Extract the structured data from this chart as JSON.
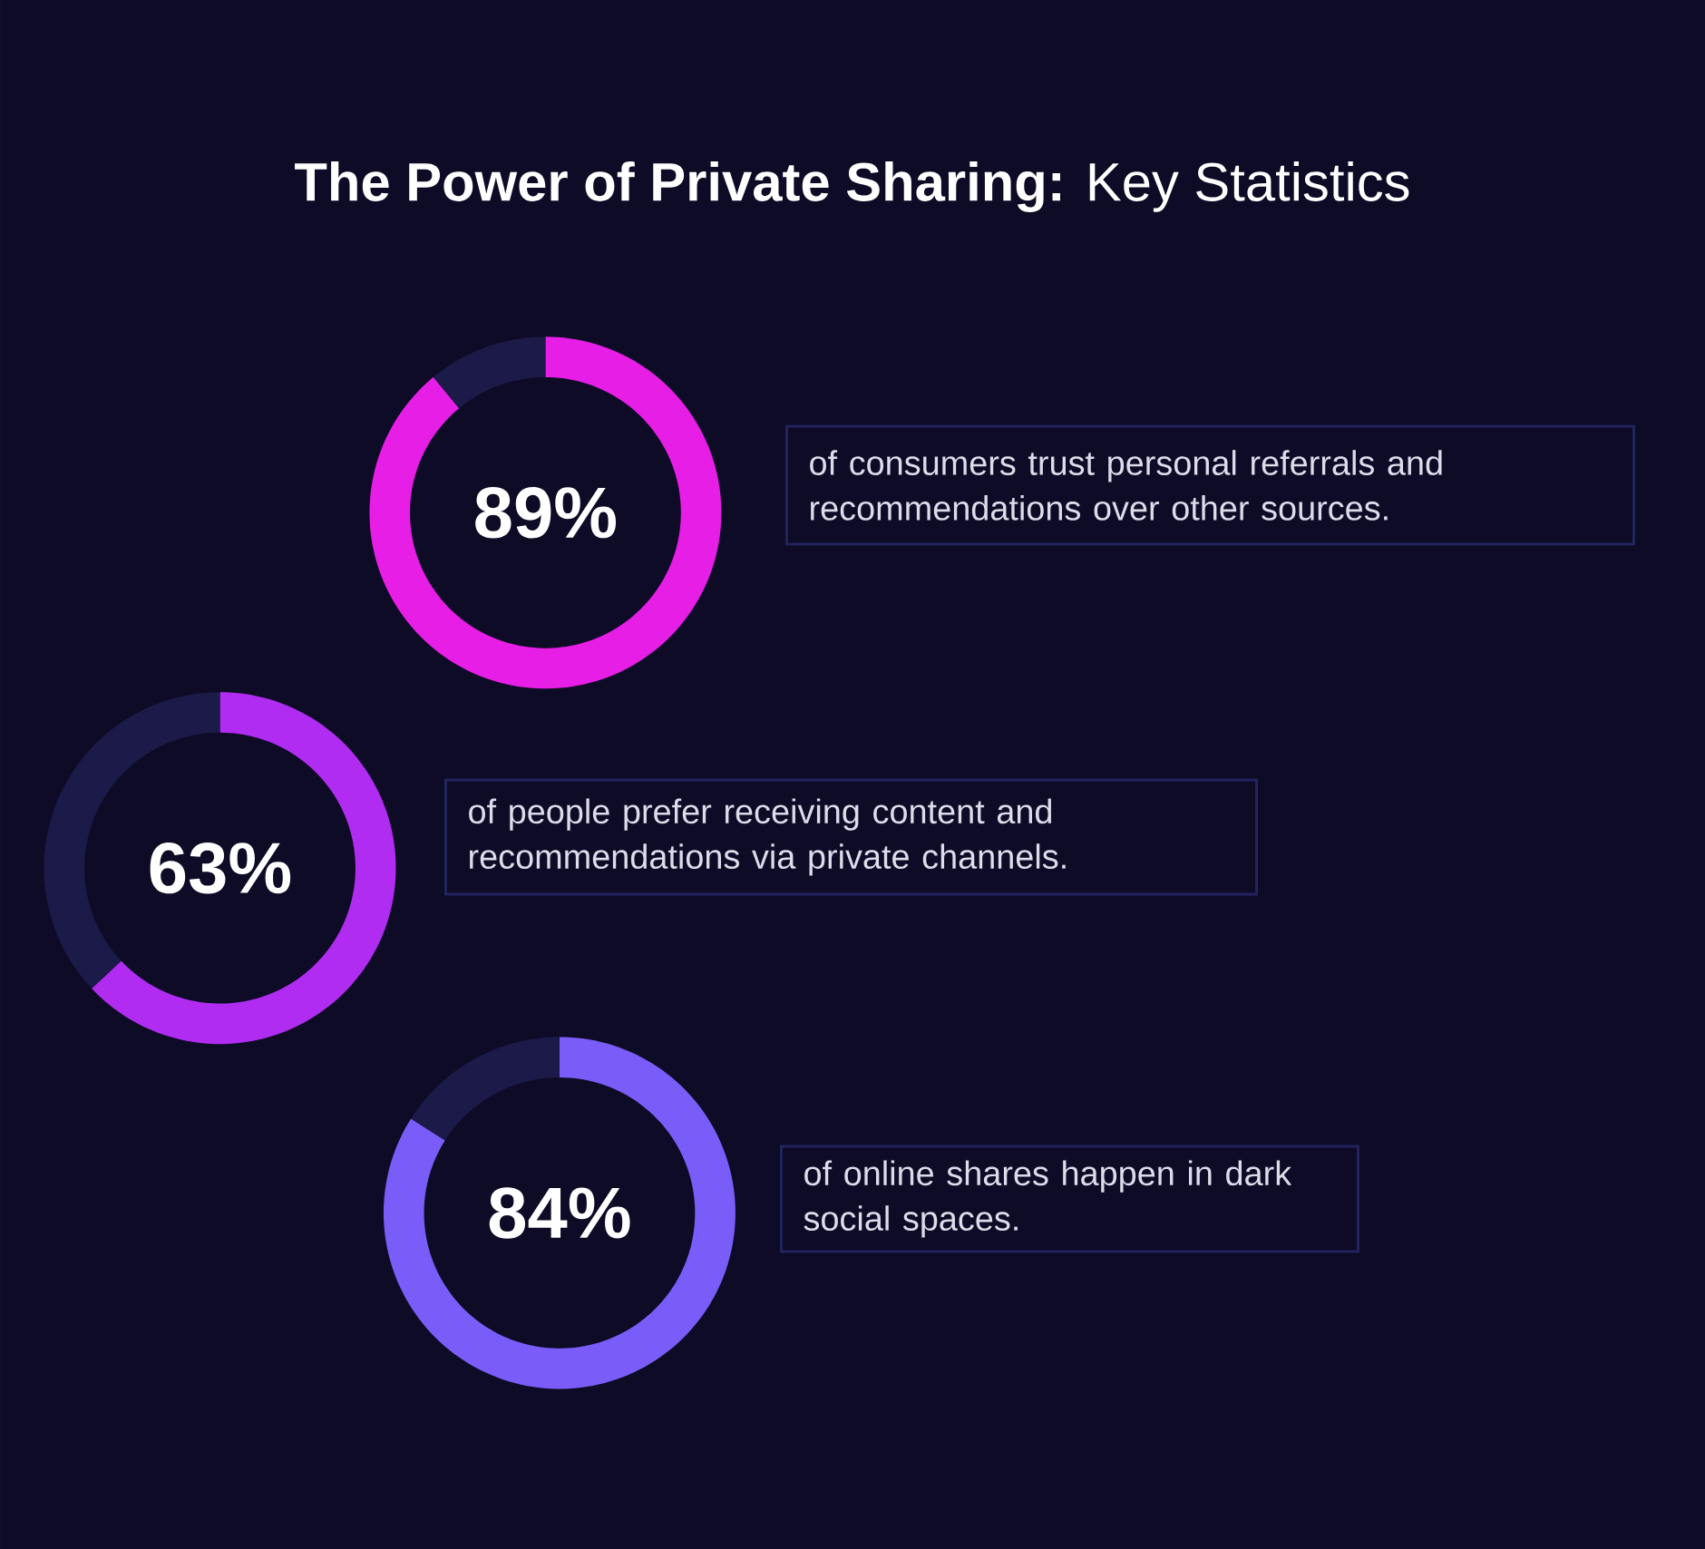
{
  "chart_data": [
    {
      "type": "donut",
      "title": "**The Power of Private Sharing:** Key Statistics",
      "categories": [
        null,
        null
      ],
      "values": [
        89,
        11
      ],
      "colors": [
        "#e61ee6",
        "#1c1a48"
      ],
      "value_labels": [
        "89%",
        null
      ],
      "annotations": [
        "of consumers trust personal referrals and recommendations over other sources."
      ]
    },
    {
      "type": "donut",
      "categories": [
        null,
        null
      ],
      "values": [
        63,
        37
      ],
      "colors": [
        "#b02cf0",
        "#1c1a48"
      ],
      "value_labels": [
        "63%",
        null
      ],
      "annotations": [
        "of people prefer receiving content and recommendations via private channels."
      ]
    },
    {
      "type": "donut",
      "categories": [
        null,
        null
      ],
      "values": [
        84,
        16
      ],
      "colors": [
        "#7a5cf8",
        "#1c1a48"
      ],
      "value_labels": [
        "84%",
        null
      ],
      "annotations": [
        "of online shares happen in dark social spaces."
      ]
    }
  ]
}
